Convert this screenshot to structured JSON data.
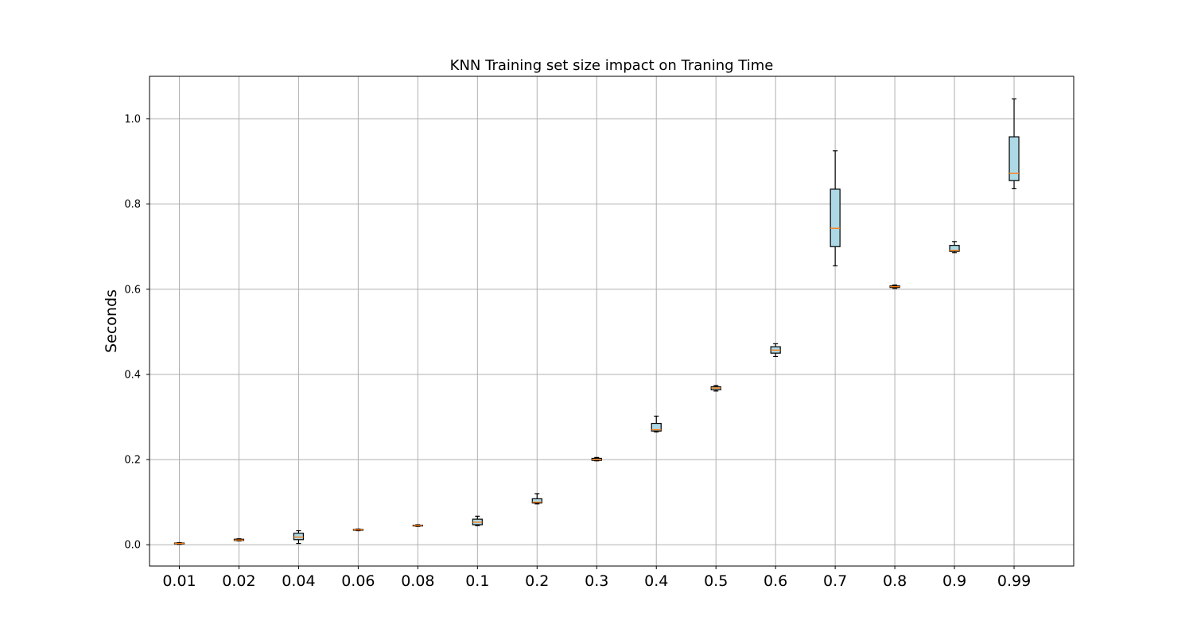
{
  "chart_data": {
    "type": "box",
    "title": "KNN Training set size impact on Traning Time",
    "xlabel": "",
    "ylabel": "Seconds",
    "ylim": [
      -0.05,
      1.1
    ],
    "yticks": [
      "0.0",
      "0.2",
      "0.4",
      "0.6",
      "0.8",
      "1.0"
    ],
    "grid": true,
    "box_color": "#add8e6",
    "median_color": "#ff7f0e",
    "categories": [
      "0.01",
      "0.02",
      "0.04",
      "0.06",
      "0.08",
      "0.1",
      "0.2",
      "0.3",
      "0.4",
      "0.5",
      "0.6",
      "0.7",
      "0.8",
      "0.9",
      "0.99"
    ],
    "boxes": [
      {
        "whislo": 0.001,
        "q1": 0.002,
        "med": 0.003,
        "q3": 0.004,
        "whishi": 0.005
      },
      {
        "whislo": 0.009,
        "q1": 0.01,
        "med": 0.011,
        "q3": 0.013,
        "whishi": 0.014
      },
      {
        "whislo": 0.003,
        "q1": 0.012,
        "med": 0.018,
        "q3": 0.027,
        "whishi": 0.033
      },
      {
        "whislo": 0.033,
        "q1": 0.034,
        "med": 0.035,
        "q3": 0.036,
        "whishi": 0.037
      },
      {
        "whislo": 0.043,
        "q1": 0.044,
        "med": 0.045,
        "q3": 0.046,
        "whishi": 0.047
      },
      {
        "whislo": 0.045,
        "q1": 0.047,
        "med": 0.053,
        "q3": 0.06,
        "whishi": 0.067
      },
      {
        "whislo": 0.096,
        "q1": 0.098,
        "med": 0.1,
        "q3": 0.108,
        "whishi": 0.12
      },
      {
        "whislo": 0.197,
        "q1": 0.198,
        "med": 0.2,
        "q3": 0.203,
        "whishi": 0.205
      },
      {
        "whislo": 0.265,
        "q1": 0.267,
        "med": 0.27,
        "q3": 0.285,
        "whishi": 0.302
      },
      {
        "whislo": 0.361,
        "q1": 0.364,
        "med": 0.368,
        "q3": 0.371,
        "whishi": 0.374
      },
      {
        "whislo": 0.442,
        "q1": 0.45,
        "med": 0.457,
        "q3": 0.465,
        "whishi": 0.472
      },
      {
        "whislo": 0.655,
        "q1": 0.7,
        "med": 0.743,
        "q3": 0.835,
        "whishi": 0.925
      },
      {
        "whislo": 0.602,
        "q1": 0.604,
        "med": 0.606,
        "q3": 0.608,
        "whishi": 0.61
      },
      {
        "whislo": 0.686,
        "q1": 0.689,
        "med": 0.691,
        "q3": 0.703,
        "whishi": 0.712
      },
      {
        "whislo": 0.836,
        "q1": 0.855,
        "med": 0.872,
        "q3": 0.958,
        "whishi": 1.047
      }
    ]
  }
}
